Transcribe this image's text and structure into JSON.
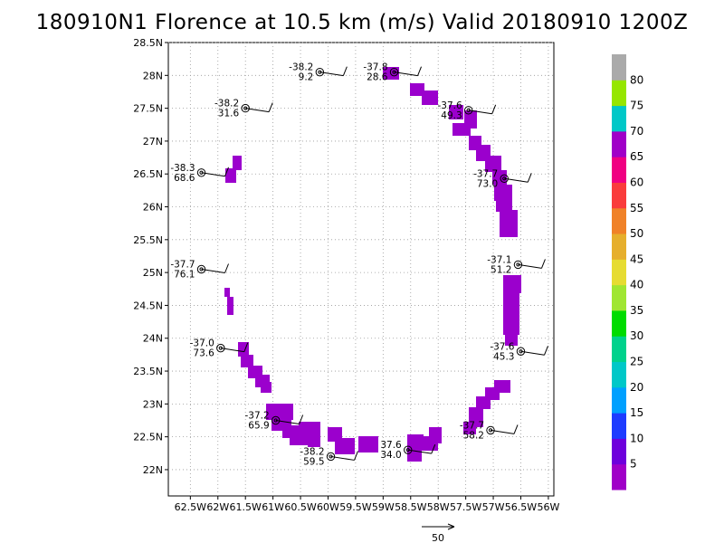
{
  "title": "180910N1 Florence at 10.5 km (m/s) Valid 20180910  1200Z",
  "chart_data": {
    "type": "scatter",
    "title": "180910N1 Florence at 10.5 km (m/s) Valid 20180910  1200Z",
    "x_ticks": [
      -62.5,
      -62,
      -61.5,
      -61,
      -60.5,
      -60,
      -59.5,
      -59,
      -58.5,
      -58,
      -57.5,
      -57,
      -56.5,
      -56
    ],
    "x_tick_labels": [
      "62.5W",
      "62W",
      "61.5W",
      "61W",
      "60.5W",
      "60W",
      "59.5W",
      "59W",
      "58.5W",
      "58W",
      "57.5W",
      "57W",
      "56.5W",
      "56W"
    ],
    "y_ticks": [
      22,
      22.5,
      23,
      23.5,
      24,
      24.5,
      25,
      25.5,
      26,
      26.5,
      27,
      27.5,
      28,
      28.5
    ],
    "y_tick_labels": [
      "22N",
      "22.5N",
      "23N",
      "23.5N",
      "24N",
      "24.5N",
      "25N",
      "25.5N",
      "26N",
      "26.5N",
      "27N",
      "27.5N",
      "28N",
      "28.5N"
    ],
    "xlim": [
      -62.9,
      -55.9
    ],
    "ylim": [
      21.6,
      28.5
    ],
    "grid": true,
    "colorbar": {
      "labels": [
        "5",
        "10",
        "15",
        "20",
        "25",
        "30",
        "35",
        "40",
        "45",
        "50",
        "55",
        "60",
        "65",
        "70",
        "75",
        "80"
      ],
      "colors": [
        "#a000c8",
        "#6e00dc",
        "#1e3cff",
        "#00a0ff",
        "#00c8c8",
        "#00d28c",
        "#00dc00",
        "#a0e632",
        "#e6dc32",
        "#e6af2d",
        "#f08228",
        "#fa3c3c",
        "#f00082",
        "#a000c8",
        "#00c8c8",
        "#96e600",
        "#aaaaaa"
      ]
    },
    "observations": [
      {
        "lon": -60.15,
        "lat": 28.05,
        "t": "-38.2",
        "w": "9.2"
      },
      {
        "lon": -58.8,
        "lat": 28.05,
        "t": "-37.8",
        "w": "28.6"
      },
      {
        "lon": -61.5,
        "lat": 27.5,
        "t": "-38.2",
        "w": "31.6"
      },
      {
        "lon": -57.45,
        "lat": 27.47,
        "t": "-37.6",
        "w": "49.3"
      },
      {
        "lon": -62.3,
        "lat": 26.52,
        "t": "-38.3",
        "w": "68.6"
      },
      {
        "lon": -56.8,
        "lat": 26.43,
        "t": "-37.7",
        "w": "73.0"
      },
      {
        "lon": -62.3,
        "lat": 25.05,
        "t": "-37.7",
        "w": "76.1"
      },
      {
        "lon": -56.55,
        "lat": 25.12,
        "t": "-37.1",
        "w": "51.2"
      },
      {
        "lon": -61.95,
        "lat": 23.85,
        "t": "-37.0",
        "w": "73.6"
      },
      {
        "lon": -56.5,
        "lat": 23.8,
        "t": "-37.6",
        "w": "45.3"
      },
      {
        "lon": -60.95,
        "lat": 22.75,
        "t": "-37.2",
        "w": "65.9"
      },
      {
        "lon": -57.05,
        "lat": 22.6,
        "t": "-37.7",
        "w": "58.2"
      },
      {
        "lon": -59.95,
        "lat": 22.2,
        "t": "-38.2",
        "w": "59.5"
      },
      {
        "lon": -58.55,
        "lat": 22.3,
        "t": "37.6",
        "w": "34.0"
      }
    ],
    "reference_vector": {
      "label": "50"
    }
  }
}
